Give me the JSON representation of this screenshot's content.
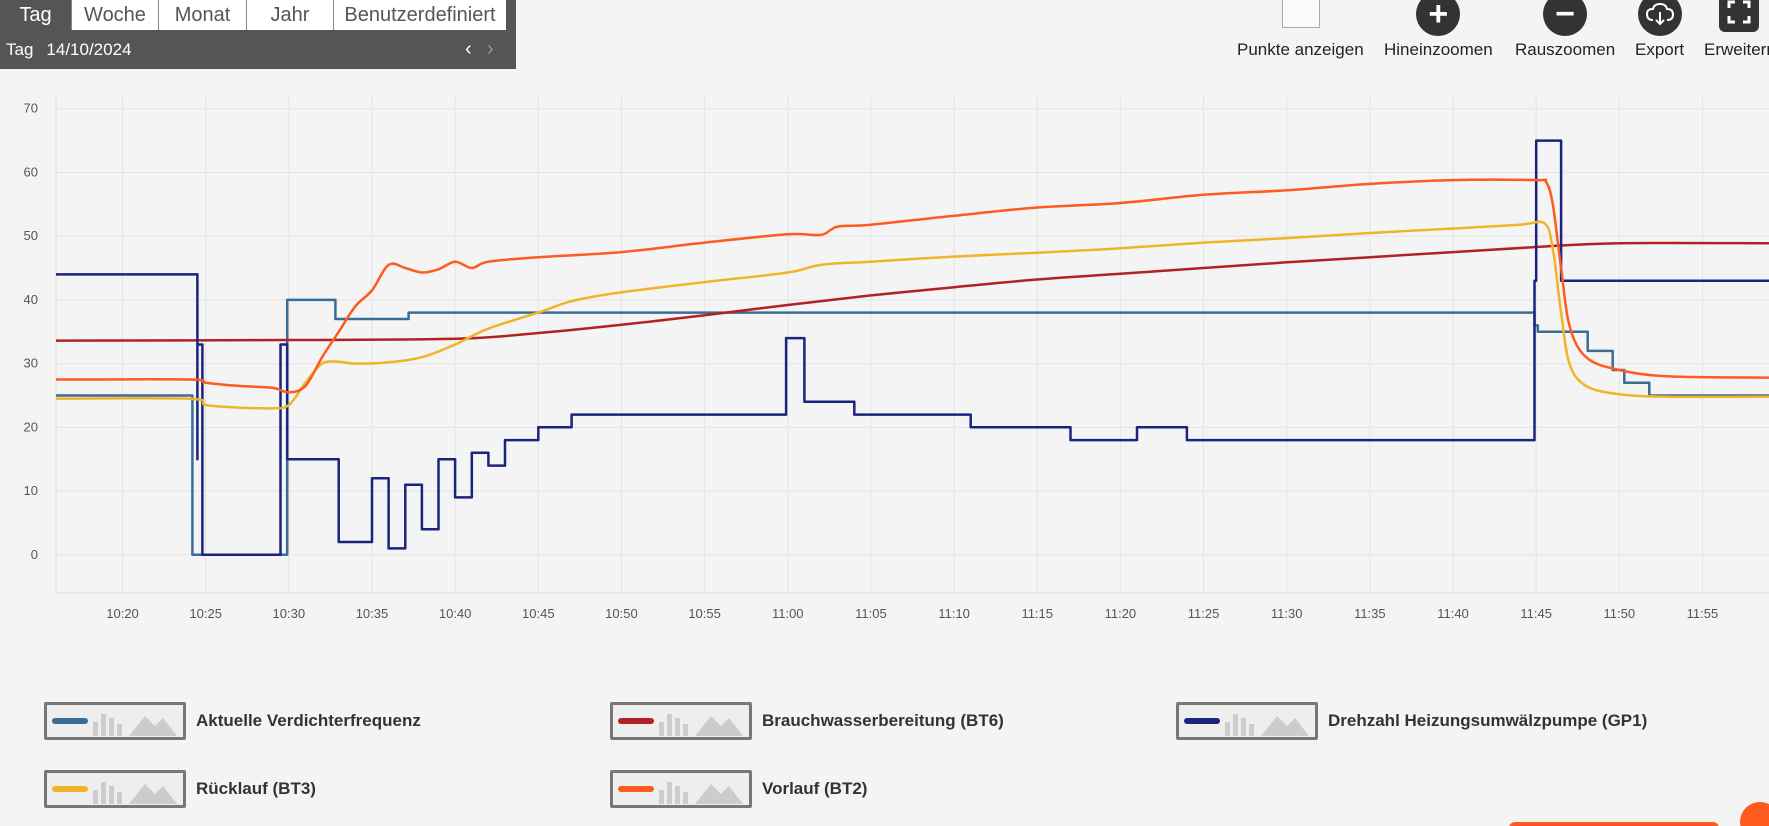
{
  "tabs": [
    {
      "label": "Tag",
      "active": true,
      "width": 72
    },
    {
      "label": "Woche",
      "active": false,
      "width": 87
    },
    {
      "label": "Monat",
      "active": false,
      "width": 88
    },
    {
      "label": "Jahr",
      "active": false,
      "width": 87
    },
    {
      "label": "Benutzerdefiniert",
      "active": false,
      "width": 172
    }
  ],
  "period": {
    "label": "Tag",
    "date": "14/10/2024",
    "prev_icon": "chevron-left-icon",
    "next_icon": "chevron-right-icon"
  },
  "toolbar": {
    "show_points": "Punkte anzeigen",
    "zoom_in": "Hineinzoomen",
    "zoom_out": "Rauszoomen",
    "export": "Export",
    "expand": "Erweitern",
    "icons": {
      "zoom_in": "plus-circle-icon",
      "zoom_out": "minus-circle-icon",
      "export": "cloud-download-icon",
      "expand": "fullscreen-icon"
    }
  },
  "chart_data": {
    "type": "line",
    "x_range": [
      "10:16",
      "11:59"
    ],
    "ylim": [
      -6,
      72
    ],
    "y_ticks": [
      0,
      10,
      20,
      30,
      40,
      50,
      60,
      70
    ],
    "x_ticks": [
      "10:20",
      "10:25",
      "10:30",
      "10:35",
      "10:40",
      "10:45",
      "10:50",
      "10:55",
      "11:00",
      "11:05",
      "11:10",
      "11:15",
      "11:20",
      "11:25",
      "11:30",
      "11:35",
      "11:40",
      "11:45",
      "11:50",
      "11:55"
    ],
    "grid": true,
    "legend_position": "bottom",
    "series": [
      {
        "name": "Aktuelle Verdichterfrequenz",
        "color": "#3a6d96",
        "step": true,
        "points": [
          [
            "10:16",
            25
          ],
          [
            "10:24.2",
            25
          ],
          [
            "10:24.2",
            0
          ],
          [
            "10:29.9",
            0
          ],
          [
            "10:29.9",
            40
          ],
          [
            "10:32.8",
            40
          ],
          [
            "10:32.8",
            37
          ],
          [
            "10:37.2",
            37
          ],
          [
            "10:37.2",
            38
          ],
          [
            "11:44.9",
            38
          ],
          [
            "11:44.9",
            36
          ],
          [
            "11:45.1",
            36
          ],
          [
            "11:45.1",
            35
          ],
          [
            "11:48.1",
            35
          ],
          [
            "11:48.1",
            32
          ],
          [
            "11:49.6",
            32
          ],
          [
            "11:49.6",
            29
          ],
          [
            "11:50.3",
            29
          ],
          [
            "11:50.3",
            27
          ],
          [
            "11:51.8",
            27
          ],
          [
            "11:51.8",
            25
          ],
          [
            "11:59",
            25
          ]
        ]
      },
      {
        "name": "Brauchwasserbereitung (BT6)",
        "color": "#b22222",
        "step": false,
        "points": [
          [
            "10:16",
            33.6
          ],
          [
            "10:30",
            33.7
          ],
          [
            "10:40",
            33.9
          ],
          [
            "10:45",
            34.8
          ],
          [
            "10:50",
            36.1
          ],
          [
            "10:55",
            37.6
          ],
          [
            "11:00",
            39.2
          ],
          [
            "11:05",
            40.7
          ],
          [
            "11:10",
            42
          ],
          [
            "11:15",
            43.2
          ],
          [
            "11:20",
            44.1
          ],
          [
            "11:25",
            45
          ],
          [
            "11:30",
            45.9
          ],
          [
            "11:35",
            46.7
          ],
          [
            "11:40",
            47.5
          ],
          [
            "11:45",
            48.3
          ],
          [
            "11:50",
            48.9
          ],
          [
            "11:59",
            48.9
          ]
        ]
      },
      {
        "name": "Drehzahl Heizungsumwälzpumpe (GP1)",
        "color": "#1a237e",
        "step": true,
        "points": [
          [
            "10:16",
            44
          ],
          [
            "10:24.5",
            44
          ],
          [
            "10:24.5",
            15
          ],
          [
            "10:24.5",
            33
          ],
          [
            "10:24.8",
            33
          ],
          [
            "10:24.8",
            0
          ],
          [
            "10:29.5",
            0
          ],
          [
            "10:29.5",
            33
          ],
          [
            "10:29.9",
            33
          ],
          [
            "10:29.9",
            15
          ],
          [
            "10:33",
            15
          ],
          [
            "10:33",
            2
          ],
          [
            "10:35",
            2
          ],
          [
            "10:35",
            12
          ],
          [
            "10:36",
            12
          ],
          [
            "10:36",
            1
          ],
          [
            "10:37",
            1
          ],
          [
            "10:37",
            11
          ],
          [
            "10:38",
            11
          ],
          [
            "10:38",
            4
          ],
          [
            "10:39",
            4
          ],
          [
            "10:39",
            15
          ],
          [
            "10:40",
            15
          ],
          [
            "10:40",
            9
          ],
          [
            "10:41",
            9
          ],
          [
            "10:41",
            16
          ],
          [
            "10:42",
            16
          ],
          [
            "10:42",
            14
          ],
          [
            "10:43",
            14
          ],
          [
            "10:43",
            18
          ],
          [
            "10:45",
            18
          ],
          [
            "10:45",
            20
          ],
          [
            "10:47",
            20
          ],
          [
            "10:47",
            22
          ],
          [
            "10:59.9",
            22
          ],
          [
            "10:59.9",
            34
          ],
          [
            "11:01",
            34
          ],
          [
            "11:01",
            24
          ],
          [
            "11:04",
            24
          ],
          [
            "11:04",
            22
          ],
          [
            "11:11",
            22
          ],
          [
            "11:11",
            20
          ],
          [
            "11:17",
            20
          ],
          [
            "11:17",
            18
          ],
          [
            "11:21",
            18
          ],
          [
            "11:21",
            20
          ],
          [
            "11:24",
            20
          ],
          [
            "11:24",
            18
          ],
          [
            "11:44.9",
            18
          ],
          [
            "11:44.9",
            43
          ],
          [
            "11:45",
            43
          ],
          [
            "11:45",
            65
          ],
          [
            "11:46.5",
            65
          ],
          [
            "11:46.5",
            43
          ],
          [
            "11:59",
            43
          ]
        ]
      },
      {
        "name": "Rücklauf (BT3)",
        "color": "#f0b429",
        "step": false,
        "points": [
          [
            "10:16",
            24.5
          ],
          [
            "10:24",
            24.5
          ],
          [
            "10:25",
            23.5
          ],
          [
            "10:27",
            23.1
          ],
          [
            "10:29",
            23
          ],
          [
            "10:30",
            23.5
          ],
          [
            "10:31",
            27
          ],
          [
            "10:32",
            30
          ],
          [
            "10:33",
            30.3
          ],
          [
            "10:34",
            30
          ],
          [
            "10:36",
            30.2
          ],
          [
            "10:38",
            31
          ],
          [
            "10:40",
            33
          ],
          [
            "10:42",
            35.5
          ],
          [
            "10:45",
            38
          ],
          [
            "10:47",
            39.8
          ],
          [
            "10:50",
            41.2
          ],
          [
            "10:55",
            42.8
          ],
          [
            "11:00",
            44.3
          ],
          [
            "11:02",
            45.5
          ],
          [
            "11:05",
            46
          ],
          [
            "11:10",
            46.8
          ],
          [
            "11:15",
            47.4
          ],
          [
            "11:20",
            48.1
          ],
          [
            "11:25",
            49
          ],
          [
            "11:30",
            49.7
          ],
          [
            "11:35",
            50.5
          ],
          [
            "11:40",
            51.2
          ],
          [
            "11:44",
            51.8
          ],
          [
            "11:45.5",
            52
          ],
          [
            "11:46",
            48
          ],
          [
            "11:46.5",
            38
          ],
          [
            "11:47",
            30
          ],
          [
            "11:48",
            26.5
          ],
          [
            "11:50",
            25.2
          ],
          [
            "11:53",
            24.8
          ],
          [
            "11:59",
            24.8
          ]
        ]
      },
      {
        "name": "Vorlauf (BT2)",
        "color": "#ff5a1f",
        "step": false,
        "points": [
          [
            "10:16",
            27.5
          ],
          [
            "10:24",
            27.5
          ],
          [
            "10:25",
            27
          ],
          [
            "10:27",
            26.5
          ],
          [
            "10:29",
            26.2
          ],
          [
            "10:30",
            25.5
          ],
          [
            "10:31",
            26.5
          ],
          [
            "10:32",
            31
          ],
          [
            "10:33",
            35
          ],
          [
            "10:34",
            39
          ],
          [
            "10:35",
            41.5
          ],
          [
            "10:36",
            45.5
          ],
          [
            "10:37",
            45
          ],
          [
            "10:38",
            44.3
          ],
          [
            "10:39",
            44.8
          ],
          [
            "10:40",
            46
          ],
          [
            "10:41",
            45
          ],
          [
            "10:42",
            46
          ],
          [
            "10:45",
            46.7
          ],
          [
            "10:50",
            47.5
          ],
          [
            "10:55",
            49
          ],
          [
            "11:00",
            50.3
          ],
          [
            "11:02",
            50.2
          ],
          [
            "11:03",
            51.5
          ],
          [
            "11:05",
            51.8
          ],
          [
            "11:10",
            53.2
          ],
          [
            "11:15",
            54.5
          ],
          [
            "11:20",
            55.2
          ],
          [
            "11:25",
            56.5
          ],
          [
            "11:30",
            57.2
          ],
          [
            "11:35",
            58.2
          ],
          [
            "11:40",
            58.8
          ],
          [
            "11:45",
            58.8
          ],
          [
            "11:45.6",
            58.5
          ],
          [
            "11:46",
            55
          ],
          [
            "11:46.5",
            45
          ],
          [
            "11:47",
            36
          ],
          [
            "11:48",
            31
          ],
          [
            "11:50",
            29
          ],
          [
            "11:53",
            28
          ],
          [
            "11:59",
            27.8
          ]
        ]
      }
    ]
  },
  "legend": [
    {
      "label": "Aktuelle Verdichterfrequenz",
      "color": "#3a6d96"
    },
    {
      "label": "Brauchwasserbereitung (BT6)",
      "color": "#b22222"
    },
    {
      "label": "Drehzahl Heizungsumwälzpumpe (GP1)",
      "color": "#1a237e"
    },
    {
      "label": "Rücklauf (BT3)",
      "color": "#f0b429"
    },
    {
      "label": "Vorlauf (BT2)",
      "color": "#ff5a1f"
    }
  ]
}
